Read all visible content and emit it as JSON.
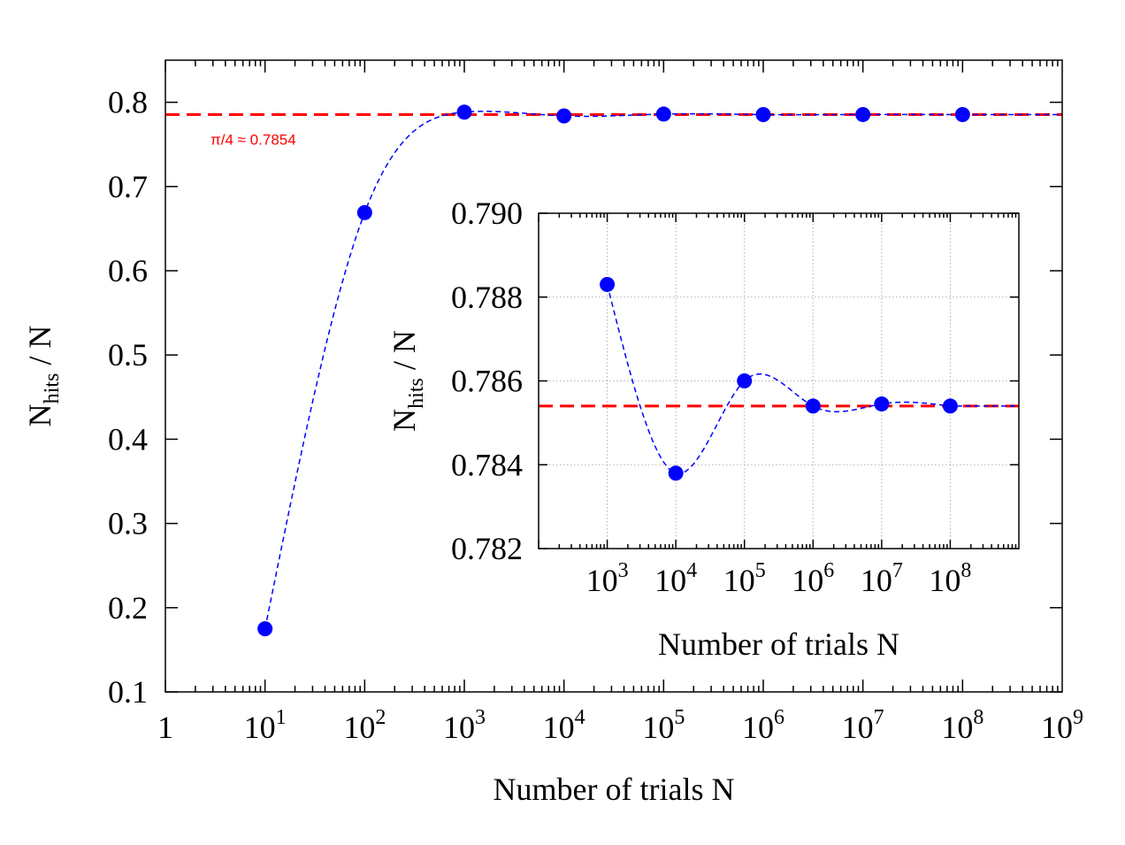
{
  "chart_data": [
    {
      "type": "scatter",
      "title": "",
      "xlabel": "Number of trials N",
      "ylabel": {
        "base": "N",
        "sub": "hits",
        "rest": " / N"
      },
      "xscale": "log",
      "xlim": [
        1,
        1000000000
      ],
      "ylim": [
        0.1,
        0.85
      ],
      "x_ticks": [
        {
          "value": 1,
          "base": "1",
          "exp": ""
        },
        {
          "value": 10,
          "base": "10",
          "exp": "1"
        },
        {
          "value": 100,
          "base": "10",
          "exp": "2"
        },
        {
          "value": 1000,
          "base": "10",
          "exp": "3"
        },
        {
          "value": 10000,
          "base": "10",
          "exp": "4"
        },
        {
          "value": 100000,
          "base": "10",
          "exp": "5"
        },
        {
          "value": 1000000,
          "base": "10",
          "exp": "6"
        },
        {
          "value": 10000000,
          "base": "10",
          "exp": "7"
        },
        {
          "value": 100000000,
          "base": "10",
          "exp": "8"
        },
        {
          "value": 1000000000,
          "base": "10",
          "exp": "9"
        }
      ],
      "y_ticks": [
        {
          "value": 0.1,
          "label": "0.1"
        },
        {
          "value": 0.2,
          "label": "0.2"
        },
        {
          "value": 0.3,
          "label": "0.3"
        },
        {
          "value": 0.4,
          "label": "0.4"
        },
        {
          "value": 0.5,
          "label": "0.5"
        },
        {
          "value": 0.6,
          "label": "0.6"
        },
        {
          "value": 0.7,
          "label": "0.7"
        },
        {
          "value": 0.8,
          "label": "0.8"
        }
      ],
      "grid": false,
      "series": [
        {
          "style": "points+dashed-spline",
          "color": "#0000ff",
          "points": [
            {
              "x": 10,
              "y": 0.175
            },
            {
              "x": 100,
              "y": 0.669
            },
            {
              "x": 1000,
              "y": 0.7883
            },
            {
              "x": 10000,
              "y": 0.7838
            },
            {
              "x": 100000,
              "y": 0.786
            },
            {
              "x": 1000000,
              "y": 0.7854
            },
            {
              "x": 10000000,
              "y": 0.78545
            },
            {
              "x": 100000000,
              "y": 0.7854
            }
          ]
        }
      ],
      "reference_line": {
        "y": 0.7854,
        "color": "#ff0000",
        "style": "dashed"
      },
      "annotations": [
        {
          "text": "π/4 ≈ 0.7854",
          "color": "#ff0000"
        }
      ]
    },
    {
      "type": "scatter",
      "role": "inset",
      "title": "",
      "xlabel": "Number of trials N",
      "ylabel": {
        "base": "N",
        "sub": "hits",
        "rest": " / N"
      },
      "xscale": "log",
      "xlim": [
        100,
        1000000000
      ],
      "ylim": [
        0.782,
        0.79
      ],
      "x_ticks": [
        {
          "value": 1000,
          "base": "10",
          "exp": "3"
        },
        {
          "value": 10000,
          "base": "10",
          "exp": "4"
        },
        {
          "value": 100000,
          "base": "10",
          "exp": "5"
        },
        {
          "value": 1000000,
          "base": "10",
          "exp": "6"
        },
        {
          "value": 10000000,
          "base": "10",
          "exp": "7"
        },
        {
          "value": 100000000,
          "base": "10",
          "exp": "8"
        }
      ],
      "y_ticks": [
        {
          "value": 0.782,
          "label": "0.782"
        },
        {
          "value": 0.784,
          "label": "0.784"
        },
        {
          "value": 0.786,
          "label": "0.786"
        },
        {
          "value": 0.788,
          "label": "0.788"
        },
        {
          "value": 0.79,
          "label": "0.790"
        }
      ],
      "grid": true,
      "series": [
        {
          "style": "points+dashed-spline",
          "color": "#0000ff",
          "points": [
            {
              "x": 1000,
              "y": 0.7883
            },
            {
              "x": 10000,
              "y": 0.7838
            },
            {
              "x": 100000,
              "y": 0.786
            },
            {
              "x": 1000000,
              "y": 0.7854
            },
            {
              "x": 10000000,
              "y": 0.78545
            },
            {
              "x": 100000000,
              "y": 0.7854
            }
          ]
        }
      ],
      "reference_line": {
        "y": 0.7854,
        "color": "#ff0000",
        "style": "dashed"
      }
    }
  ]
}
